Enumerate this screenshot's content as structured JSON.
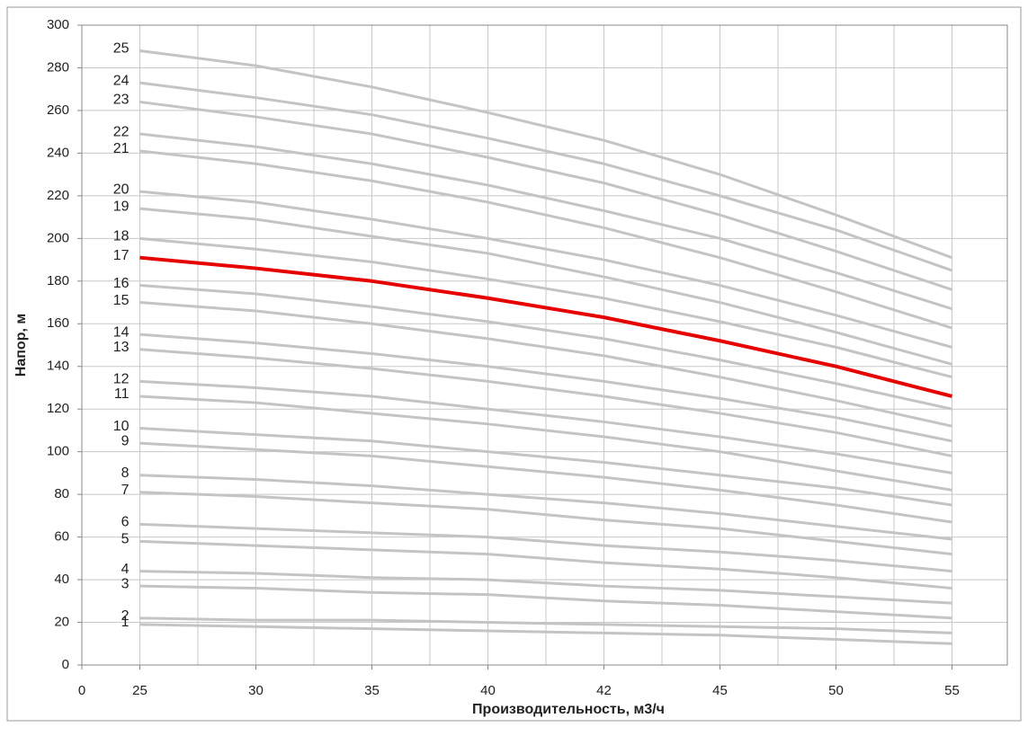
{
  "chart_data": {
    "type": "line",
    "x_label": "Производительность, м3/ч",
    "y_label": "Напор, м",
    "categories": [
      "0",
      "25",
      "30",
      "35",
      "40",
      "42",
      "45",
      "50",
      "55"
    ],
    "ylim": [
      0,
      300
    ],
    "yticks": [
      0,
      20,
      40,
      60,
      80,
      100,
      120,
      140,
      160,
      180,
      200,
      220,
      240,
      260,
      280,
      300
    ],
    "grid": true,
    "series": [
      {
        "name": "1",
        "color": "#c4c4c4",
        "values": [
          null,
          19,
          18,
          17,
          16,
          15,
          14,
          12,
          10
        ]
      },
      {
        "name": "2",
        "color": "#c4c4c4",
        "values": [
          null,
          22,
          21,
          21,
          20,
          19,
          18,
          17,
          15
        ]
      },
      {
        "name": "3",
        "color": "#c4c4c4",
        "values": [
          null,
          37,
          36,
          34,
          33,
          30,
          28,
          25,
          22
        ]
      },
      {
        "name": "4",
        "color": "#c4c4c4",
        "values": [
          null,
          44,
          43,
          41,
          40,
          37,
          35,
          32,
          29
        ]
      },
      {
        "name": "5",
        "color": "#c4c4c4",
        "values": [
          null,
          58,
          56,
          54,
          52,
          48,
          45,
          41,
          36
        ]
      },
      {
        "name": "6",
        "color": "#c4c4c4",
        "values": [
          null,
          66,
          64,
          62,
          60,
          56,
          53,
          49,
          44
        ]
      },
      {
        "name": "7",
        "color": "#c4c4c4",
        "values": [
          null,
          81,
          79,
          76,
          73,
          68,
          64,
          58,
          52
        ]
      },
      {
        "name": "8",
        "color": "#c4c4c4",
        "values": [
          null,
          89,
          87,
          84,
          80,
          76,
          71,
          65,
          59
        ]
      },
      {
        "name": "9",
        "color": "#c4c4c4",
        "values": [
          null,
          104,
          101,
          98,
          93,
          88,
          82,
          75,
          67
        ]
      },
      {
        "name": "10",
        "color": "#c4c4c4",
        "values": [
          null,
          111,
          108,
          105,
          100,
          95,
          89,
          83,
          75
        ]
      },
      {
        "name": "11",
        "color": "#c4c4c4",
        "values": [
          null,
          126,
          123,
          118,
          113,
          107,
          100,
          91,
          82
        ]
      },
      {
        "name": "12",
        "color": "#c4c4c4",
        "values": [
          null,
          133,
          130,
          126,
          120,
          114,
          107,
          99,
          90
        ]
      },
      {
        "name": "13",
        "color": "#c4c4c4",
        "values": [
          null,
          148,
          144,
          139,
          133,
          126,
          118,
          109,
          98
        ]
      },
      {
        "name": "14",
        "color": "#c4c4c4",
        "values": [
          null,
          155,
          151,
          146,
          140,
          133,
          125,
          116,
          105
        ]
      },
      {
        "name": "15",
        "color": "#c4c4c4",
        "values": [
          null,
          170,
          166,
          160,
          153,
          145,
          135,
          124,
          112
        ]
      },
      {
        "name": "16",
        "color": "#c4c4c4",
        "values": [
          null,
          178,
          174,
          168,
          161,
          153,
          143,
          132,
          120
        ]
      },
      {
        "name": "17",
        "color": "#e60000",
        "values": [
          null,
          191,
          186,
          180,
          172,
          163,
          152,
          140,
          126
        ]
      },
      {
        "name": "18",
        "color": "#c4c4c4",
        "values": [
          null,
          200,
          195,
          189,
          181,
          172,
          161,
          149,
          135
        ]
      },
      {
        "name": "19",
        "color": "#c4c4c4",
        "values": [
          null,
          214,
          209,
          201,
          193,
          182,
          170,
          156,
          141
        ]
      },
      {
        "name": "20",
        "color": "#c4c4c4",
        "values": [
          null,
          222,
          217,
          209,
          200,
          190,
          178,
          164,
          149
        ]
      },
      {
        "name": "21",
        "color": "#c4c4c4",
        "values": [
          null,
          241,
          235,
          227,
          217,
          205,
          191,
          175,
          158
        ]
      },
      {
        "name": "22",
        "color": "#c4c4c4",
        "values": [
          null,
          249,
          243,
          235,
          225,
          213,
          200,
          184,
          167
        ]
      },
      {
        "name": "23",
        "color": "#c4c4c4",
        "values": [
          null,
          264,
          257,
          249,
          238,
          226,
          211,
          194,
          176
        ]
      },
      {
        "name": "24",
        "color": "#c4c4c4",
        "values": [
          null,
          273,
          266,
          258,
          247,
          235,
          220,
          204,
          185
        ]
      },
      {
        "name": "25",
        "color": "#c4c4c4",
        "values": [
          null,
          288,
          281,
          271,
          259,
          246,
          230,
          211,
          191
        ]
      }
    ]
  }
}
